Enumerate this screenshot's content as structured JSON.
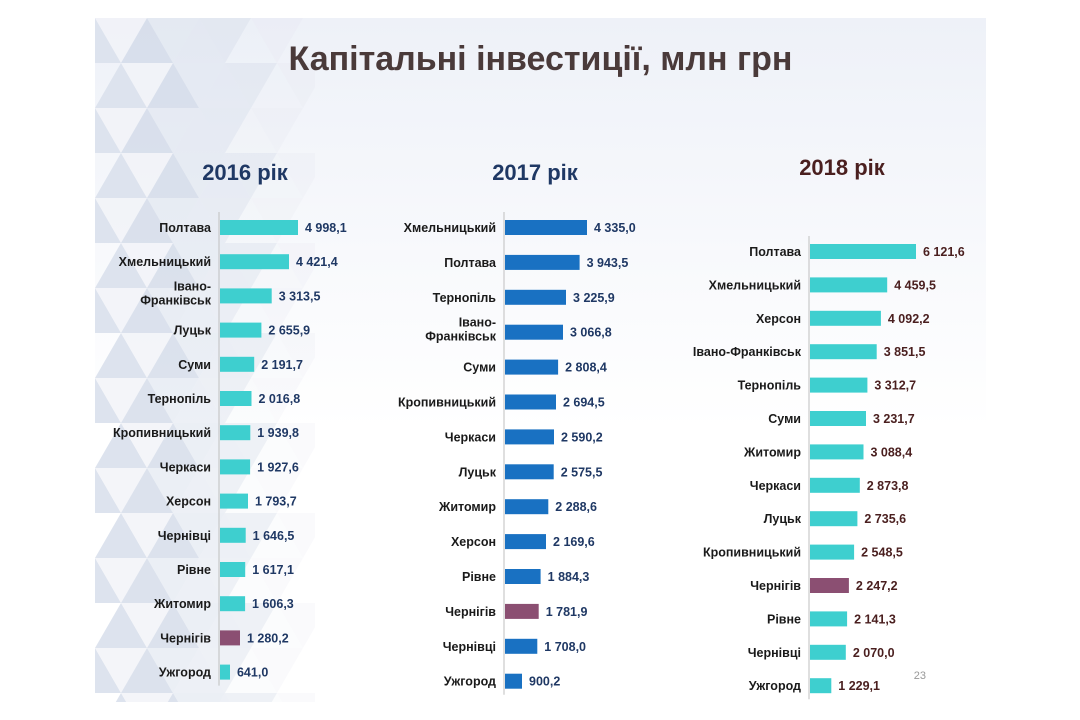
{
  "title": "Капітальні інвестиції, млн грн",
  "page_number": "23",
  "colors": {
    "bar_default": "#3ecfcf",
    "bar_highlight": "#8b4f72",
    "bar_2017": "#1971c2",
    "title_2016": "#1f3864",
    "title_2017": "#1f3864",
    "title_2018": "#4a1f1f",
    "value_2016": "#1f3864",
    "value_2017": "#1f3864",
    "value_2018": "#4a1f1f"
  },
  "chart_data": [
    {
      "type": "bar",
      "orientation": "horizontal",
      "title": "2016 рік",
      "highlight": "Чернігів",
      "categories": [
        "Полтава",
        "Хмельницький",
        "Івано-Франківськ",
        "Луцьк",
        "Суми",
        "Тернопіль",
        "Кропивницький",
        "Черкаси",
        "Херсон",
        "Чернівці",
        "Рівне",
        "Житомир",
        "Чернігів",
        "Ужгород"
      ],
      "values": [
        4998.1,
        4421.4,
        3313.5,
        2655.9,
        2191.7,
        2016.8,
        1939.8,
        1927.6,
        1793.7,
        1646.5,
        1617.1,
        1606.3,
        1280.2,
        641.0
      ],
      "value_labels": [
        "4 998,1",
        "4 421,4",
        "3 313,5",
        "2 655,9",
        "2 191,7",
        "2 016,8",
        "1 939,8",
        "1 927,6",
        "1 793,7",
        "1 646,5",
        "1 617,1",
        "1 606,3",
        "1 280,2",
        "641,0"
      ]
    },
    {
      "type": "bar",
      "orientation": "horizontal",
      "title": "2017 рік",
      "highlight": "Чернігів",
      "categories": [
        "Хмельницький",
        "Полтава",
        "Тернопіль",
        "Івано-Франківськ",
        "Суми",
        "Кропивницький",
        "Черкаси",
        "Луцьк",
        "Житомир",
        "Херсон",
        "Рівне",
        "Чернігів",
        "Чернівці",
        "Ужгород"
      ],
      "values": [
        4335.0,
        3943.5,
        3225.9,
        3066.8,
        2808.4,
        2694.5,
        2590.2,
        2575.5,
        2288.6,
        2169.6,
        1884.3,
        1781.9,
        1708.0,
        900.2
      ],
      "value_labels": [
        "4 335,0",
        "3 943,5",
        "3 225,9",
        "3 066,8",
        "2 808,4",
        "2 694,5",
        "2 590,2",
        "2 575,5",
        "2 288,6",
        "2 169,6",
        "1 884,3",
        "1 781,9",
        "1 708,0",
        "900,2"
      ]
    },
    {
      "type": "bar",
      "orientation": "horizontal",
      "title": "2018 рік",
      "highlight": "Чернігів",
      "categories": [
        "Полтава",
        "Хмельницький",
        "Херсон",
        "Івано-Франківськ",
        "Тернопіль",
        "Суми",
        "Житомир",
        "Черкаси",
        "Луцьк",
        "Кропивницький",
        "Чернігів",
        "Рівне",
        "Чернівці",
        "Ужгород"
      ],
      "values": [
        6121.6,
        4459.5,
        4092.2,
        3851.5,
        3312.7,
        3231.7,
        3088.4,
        2873.8,
        2735.6,
        2548.5,
        2247.2,
        2141.3,
        2070.0,
        1229.1
      ],
      "value_labels": [
        "6 121,6",
        "4 459,5",
        "4 092,2",
        "3 851,5",
        "3 312,7",
        "3 231,7",
        "3 088,4",
        "2 873,8",
        "2 735,6",
        "2 548,5",
        "2 247,2",
        "2 141,3",
        "2 070,0",
        "1 229,1"
      ]
    }
  ]
}
